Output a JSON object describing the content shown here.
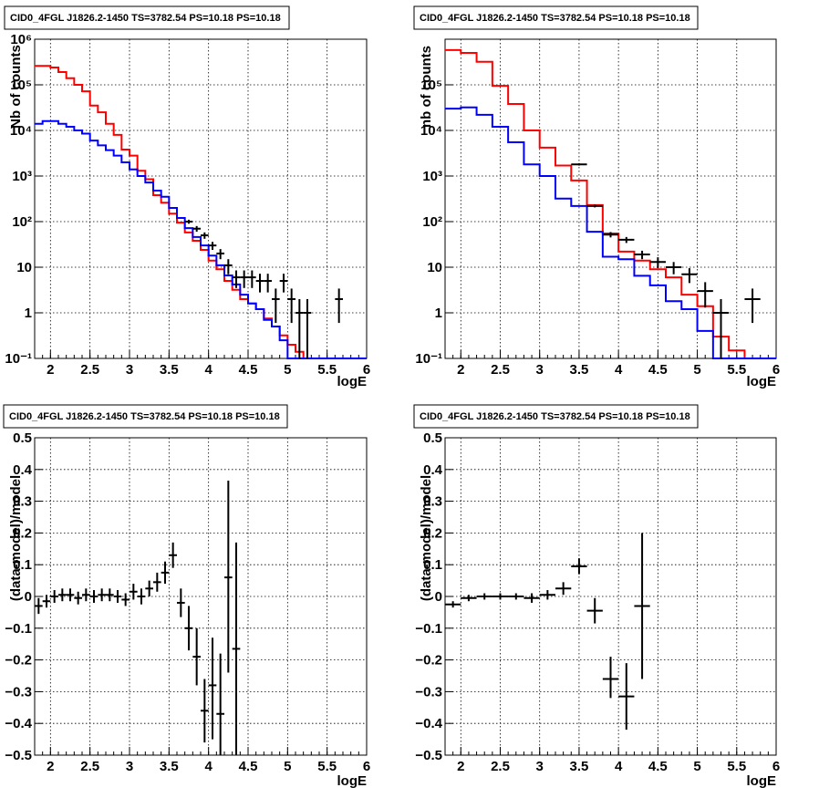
{
  "colors": {
    "model_total": "#ff0000",
    "model_component": "#0000ff",
    "data": "#000000"
  },
  "chart_data": [
    {
      "id": "spectrum-left",
      "type": "step",
      "title": "CID0_4FGL J1826.2-1450 TS=3782.54 PS=10.18 PS=10.18",
      "xlabel": "logE",
      "ylabel": "Nb of counts",
      "log_y": true,
      "xlim": [
        1.8,
        6.0
      ],
      "ylim": [
        0.1,
        1000000
      ],
      "x_ticks": [
        2,
        2.5,
        3,
        3.5,
        4,
        4.5,
        5,
        5.5,
        6
      ],
      "x_tick_labels": [
        "2",
        "2.5",
        "3",
        "3.5",
        "4",
        "4.5",
        "5",
        "5.5",
        "6"
      ],
      "y_ticks": [
        0.1,
        1,
        10,
        100,
        1000,
        10000,
        100000,
        1000000
      ],
      "y_tick_labels": [
        "10⁻¹",
        "1",
        "10",
        "10²",
        "10³",
        "10⁴",
        "10⁵",
        "10⁶"
      ],
      "grid": true,
      "bin_edges": [
        1.8,
        1.9,
        2.0,
        2.1,
        2.2,
        2.3,
        2.4,
        2.5,
        2.6,
        2.7,
        2.8,
        2.9,
        3.0,
        3.1,
        3.2,
        3.3,
        3.4,
        3.5,
        3.6,
        3.7,
        3.8,
        3.9,
        4.0,
        4.1,
        4.2,
        4.3,
        4.4,
        4.5,
        4.6,
        4.7,
        4.8,
        4.9,
        5.0,
        5.1,
        5.2,
        5.3,
        5.4,
        5.5,
        5.6,
        5.7,
        5.8,
        5.9,
        6.0
      ],
      "series": [
        {
          "color_key": "model_total",
          "values": [
            260000,
            260000,
            240000,
            190000,
            140000,
            100000,
            72000,
            35000,
            25000,
            14000,
            8000,
            3800,
            2800,
            1300,
            850,
            380,
            260,
            150,
            95,
            58,
            38,
            24,
            14,
            9,
            5,
            3.2,
            2,
            1.6,
            1.2,
            0.75,
            0.5,
            0.32,
            0.2,
            0.14,
            0.1,
            0.1,
            0.1,
            0.1,
            0.1,
            0.1,
            0.1,
            0.1
          ]
        },
        {
          "color_key": "model_component",
          "values": [
            14000,
            16000,
            16000,
            14000,
            12000,
            10000,
            8500,
            6000,
            4700,
            3700,
            2800,
            2000,
            1400,
            1000,
            720,
            480,
            350,
            200,
            120,
            72,
            46,
            30,
            18,
            11,
            6.6,
            4.2,
            2.5,
            1.6,
            1.2,
            0.7,
            0.5,
            0.25,
            0.1,
            0.1,
            0.1,
            0.1,
            0.1,
            0.1,
            0.1,
            0.1,
            0.1,
            0.1
          ]
        }
      ],
      "points": [
        {
          "x": 3.75,
          "y": 100,
          "ylo": 90,
          "yhi": 110,
          "xhw": 0.05
        },
        {
          "x": 3.85,
          "y": 70,
          "ylo": 60,
          "yhi": 80,
          "xhw": 0.05
        },
        {
          "x": 3.95,
          "y": 50,
          "ylo": 42,
          "yhi": 58,
          "xhw": 0.05
        },
        {
          "x": 4.05,
          "y": 30,
          "ylo": 24,
          "yhi": 36,
          "xhw": 0.05
        },
        {
          "x": 4.15,
          "y": 20,
          "ylo": 15,
          "yhi": 25,
          "xhw": 0.05
        },
        {
          "x": 4.25,
          "y": 11,
          "ylo": 7,
          "yhi": 15,
          "xhw": 0.05
        },
        {
          "x": 4.35,
          "y": 6,
          "ylo": 3.5,
          "yhi": 8.5,
          "xhw": 0.05
        },
        {
          "x": 4.45,
          "y": 6,
          "ylo": 3.5,
          "yhi": 8.5,
          "xhw": 0.05
        },
        {
          "x": 4.55,
          "y": 6,
          "ylo": 3.5,
          "yhi": 8.5,
          "xhw": 0.05
        },
        {
          "x": 4.65,
          "y": 5,
          "ylo": 2.8,
          "yhi": 7.2,
          "xhw": 0.05
        },
        {
          "x": 4.75,
          "y": 5,
          "ylo": 2.8,
          "yhi": 7.2,
          "xhw": 0.05
        },
        {
          "x": 4.85,
          "y": 2,
          "ylo": 0.6,
          "yhi": 3.4,
          "xhw": 0.05
        },
        {
          "x": 4.95,
          "y": 5,
          "ylo": 2.8,
          "yhi": 7.2,
          "xhw": 0.05
        },
        {
          "x": 5.05,
          "y": 2,
          "ylo": 0.6,
          "yhi": 3.4,
          "xhw": 0.05
        },
        {
          "x": 5.15,
          "y": 1,
          "ylo": 0.1,
          "yhi": 2,
          "xhw": 0.05
        },
        {
          "x": 5.25,
          "y": 1,
          "ylo": 0.1,
          "yhi": 2,
          "xhw": 0.05
        },
        {
          "x": 5.65,
          "y": 2,
          "ylo": 0.6,
          "yhi": 3.4,
          "xhw": 0.05
        }
      ]
    },
    {
      "id": "spectrum-right",
      "type": "step",
      "title": "CID0_4FGL J1826.2-1450 TS=3782.54 PS=10.18 PS=10.18",
      "xlabel": "logE",
      "ylabel": "nb of counts",
      "log_y": true,
      "xlim": [
        1.8,
        6.0
      ],
      "ylim": [
        0.1,
        1000000
      ],
      "x_ticks": [
        2,
        2.5,
        3,
        3.5,
        4,
        4.5,
        5,
        5.5,
        6
      ],
      "x_tick_labels": [
        "2",
        "2.5",
        "3",
        "3.5",
        "4",
        "4.5",
        "5",
        "5.5",
        "6"
      ],
      "y_ticks": [
        0.1,
        1,
        10,
        100,
        1000,
        10000,
        100000
      ],
      "y_tick_labels": [
        "10⁻¹",
        "1",
        "10",
        "10²",
        "10³",
        "10⁴",
        "10⁵"
      ],
      "grid": true,
      "bin_edges": [
        1.8,
        2.0,
        2.2,
        2.4,
        2.6,
        2.8,
        3.0,
        3.2,
        3.4,
        3.6,
        3.8,
        4.0,
        4.2,
        4.4,
        4.6,
        4.8,
        5.0,
        5.2,
        5.4,
        5.6,
        5.8,
        6.0
      ],
      "series": [
        {
          "color_key": "model_total",
          "values": [
            580000,
            500000,
            320000,
            95000,
            38000,
            10000,
            4200,
            1700,
            800,
            230,
            55,
            22,
            14,
            9,
            6,
            2.5,
            1.4,
            0.3,
            0.15,
            0.1,
            0.1
          ]
        },
        {
          "color_key": "model_component",
          "values": [
            30000,
            32000,
            22000,
            12000,
            5500,
            1800,
            1000,
            320,
            220,
            60,
            17,
            15,
            6.5,
            4,
            1.8,
            1.2,
            0.4,
            0.1,
            0.1,
            0.1,
            0.1
          ]
        }
      ],
      "points": [
        {
          "x": 3.5,
          "y": 1800,
          "ylo": 1700,
          "yhi": 1900,
          "xhw": 0.1
        },
        {
          "x": 3.7,
          "y": 220,
          "ylo": 205,
          "yhi": 235,
          "xhw": 0.1
        },
        {
          "x": 3.9,
          "y": 52,
          "ylo": 45,
          "yhi": 59,
          "xhw": 0.1
        },
        {
          "x": 4.1,
          "y": 40,
          "ylo": 34,
          "yhi": 46,
          "xhw": 0.1
        },
        {
          "x": 4.3,
          "y": 19,
          "ylo": 15,
          "yhi": 23,
          "xhw": 0.1
        },
        {
          "x": 4.5,
          "y": 13,
          "ylo": 9.5,
          "yhi": 16.5,
          "xhw": 0.1
        },
        {
          "x": 4.7,
          "y": 10,
          "ylo": 7,
          "yhi": 13,
          "xhw": 0.1
        },
        {
          "x": 4.9,
          "y": 7,
          "ylo": 4.5,
          "yhi": 9.5,
          "xhw": 0.1
        },
        {
          "x": 5.1,
          "y": 3,
          "ylo": 1.3,
          "yhi": 4.7,
          "xhw": 0.1
        },
        {
          "x": 5.3,
          "y": 1,
          "ylo": 0.1,
          "yhi": 2,
          "xhw": 0.1
        },
        {
          "x": 5.7,
          "y": 2,
          "ylo": 0.6,
          "yhi": 3.4,
          "xhw": 0.1
        }
      ]
    },
    {
      "id": "residual-left",
      "type": "scatter",
      "title": "CID0_4FGL J1826.2-1450 TS=3782.54 PS=10.18 PS=10.18",
      "xlabel": "logE",
      "ylabel": "(data-model)/model",
      "log_y": false,
      "xlim": [
        1.8,
        6.0
      ],
      "ylim": [
        -0.5,
        0.5
      ],
      "x_ticks": [
        2,
        2.5,
        3,
        3.5,
        4,
        4.5,
        5,
        5.5,
        6
      ],
      "x_tick_labels": [
        "2",
        "2.5",
        "3",
        "3.5",
        "4",
        "4.5",
        "5",
        "5.5",
        "6"
      ],
      "y_ticks": [
        -0.5,
        -0.4,
        -0.3,
        -0.2,
        -0.1,
        0,
        0.1,
        0.2,
        0.3,
        0.4,
        0.5
      ],
      "y_tick_labels": [
        "−0.5",
        "−0.4",
        "−0.3",
        "−0.2",
        "−0.1",
        "0",
        "0.1",
        "0.2",
        "0.3",
        "0.4",
        "0.5"
      ],
      "grid": true,
      "series": [],
      "points": [
        {
          "x": 1.85,
          "y": -0.03,
          "ylo": -0.055,
          "yhi": -0.005,
          "xhw": 0.05
        },
        {
          "x": 1.95,
          "y": -0.015,
          "ylo": -0.035,
          "yhi": 0.005,
          "xhw": 0.05
        },
        {
          "x": 2.05,
          "y": 0.0,
          "ylo": -0.02,
          "yhi": 0.02,
          "xhw": 0.05
        },
        {
          "x": 2.15,
          "y": 0.005,
          "ylo": -0.015,
          "yhi": 0.025,
          "xhw": 0.05
        },
        {
          "x": 2.25,
          "y": 0.005,
          "ylo": -0.015,
          "yhi": 0.025,
          "xhw": 0.05
        },
        {
          "x": 2.35,
          "y": -0.005,
          "ylo": -0.025,
          "yhi": 0.015,
          "xhw": 0.05
        },
        {
          "x": 2.45,
          "y": 0.005,
          "ylo": -0.015,
          "yhi": 0.025,
          "xhw": 0.05
        },
        {
          "x": 2.55,
          "y": 0.0,
          "ylo": -0.02,
          "yhi": 0.02,
          "xhw": 0.05
        },
        {
          "x": 2.65,
          "y": 0.005,
          "ylo": -0.015,
          "yhi": 0.025,
          "xhw": 0.05
        },
        {
          "x": 2.75,
          "y": 0.005,
          "ylo": -0.015,
          "yhi": 0.025,
          "xhw": 0.05
        },
        {
          "x": 2.85,
          "y": 0.0,
          "ylo": -0.02,
          "yhi": 0.02,
          "xhw": 0.05
        },
        {
          "x": 2.95,
          "y": -0.01,
          "ylo": -0.03,
          "yhi": 0.01,
          "xhw": 0.05
        },
        {
          "x": 3.05,
          "y": 0.015,
          "ylo": -0.01,
          "yhi": 0.04,
          "xhw": 0.05
        },
        {
          "x": 3.15,
          "y": 0.0,
          "ylo": -0.025,
          "yhi": 0.025,
          "xhw": 0.05
        },
        {
          "x": 3.25,
          "y": 0.025,
          "ylo": 0.0,
          "yhi": 0.05,
          "xhw": 0.05
        },
        {
          "x": 3.35,
          "y": 0.045,
          "ylo": 0.015,
          "yhi": 0.075,
          "xhw": 0.05
        },
        {
          "x": 3.45,
          "y": 0.075,
          "ylo": 0.04,
          "yhi": 0.11,
          "xhw": 0.05
        },
        {
          "x": 3.55,
          "y": 0.13,
          "ylo": 0.09,
          "yhi": 0.17,
          "xhw": 0.05
        },
        {
          "x": 3.65,
          "y": -0.02,
          "ylo": -0.065,
          "yhi": 0.025,
          "xhw": 0.05
        },
        {
          "x": 3.75,
          "y": -0.1,
          "ylo": -0.17,
          "yhi": -0.03,
          "xhw": 0.05
        },
        {
          "x": 3.85,
          "y": -0.19,
          "ylo": -0.28,
          "yhi": -0.1,
          "xhw": 0.05
        },
        {
          "x": 3.95,
          "y": -0.36,
          "ylo": -0.46,
          "yhi": -0.26,
          "xhw": 0.05
        },
        {
          "x": 4.05,
          "y": -0.28,
          "ylo": -0.45,
          "yhi": -0.13,
          "xhw": 0.05
        },
        {
          "x": 4.15,
          "y": -0.37,
          "ylo": -0.5,
          "yhi": -0.18,
          "xhw": 0.05
        },
        {
          "x": 4.25,
          "y": 0.06,
          "ylo": -0.24,
          "yhi": 0.365,
          "xhw": 0.05
        },
        {
          "x": 4.35,
          "y": -0.165,
          "ylo": -0.5,
          "yhi": 0.17,
          "xhw": 0.05
        }
      ]
    },
    {
      "id": "residual-right",
      "type": "scatter",
      "title": "CID0_4FGL J1826.2-1450 TS=3782.54 PS=10.18 PS=10.18",
      "xlabel": "logE",
      "ylabel": "(data-model)/model",
      "log_y": false,
      "xlim": [
        1.8,
        6.0
      ],
      "ylim": [
        -0.5,
        0.5
      ],
      "x_ticks": [
        2,
        2.5,
        3,
        3.5,
        4,
        4.5,
        5,
        5.5,
        6
      ],
      "x_tick_labels": [
        "2",
        "2.5",
        "3",
        "3.5",
        "4",
        "4.5",
        "5",
        "5.5",
        "6"
      ],
      "y_ticks": [
        -0.5,
        -0.4,
        -0.3,
        -0.2,
        -0.1,
        0,
        0.1,
        0.2,
        0.3,
        0.4,
        0.5
      ],
      "y_tick_labels": [
        "−0.5",
        "−0.4",
        "−0.3",
        "−0.2",
        "−0.1",
        "0",
        "0.1",
        "0.2",
        "0.3",
        "0.4",
        "0.5"
      ],
      "grid": true,
      "series": [],
      "points": [
        {
          "x": 1.9,
          "y": -0.025,
          "ylo": -0.035,
          "yhi": -0.015,
          "xhw": 0.1
        },
        {
          "x": 2.1,
          "y": -0.005,
          "ylo": -0.015,
          "yhi": 0.005,
          "xhw": 0.1
        },
        {
          "x": 2.3,
          "y": 0.0,
          "ylo": -0.01,
          "yhi": 0.01,
          "xhw": 0.1
        },
        {
          "x": 2.5,
          "y": 0.0,
          "ylo": -0.01,
          "yhi": 0.01,
          "xhw": 0.1
        },
        {
          "x": 2.7,
          "y": 0.0,
          "ylo": -0.01,
          "yhi": 0.01,
          "xhw": 0.1
        },
        {
          "x": 2.9,
          "y": -0.005,
          "ylo": -0.02,
          "yhi": 0.01,
          "xhw": 0.1
        },
        {
          "x": 3.1,
          "y": 0.005,
          "ylo": -0.01,
          "yhi": 0.02,
          "xhw": 0.1
        },
        {
          "x": 3.3,
          "y": 0.025,
          "ylo": 0.005,
          "yhi": 0.045,
          "xhw": 0.1
        },
        {
          "x": 3.5,
          "y": 0.095,
          "ylo": 0.07,
          "yhi": 0.12,
          "xhw": 0.1
        },
        {
          "x": 3.7,
          "y": -0.045,
          "ylo": -0.085,
          "yhi": -0.005,
          "xhw": 0.1
        },
        {
          "x": 3.9,
          "y": -0.26,
          "ylo": -0.32,
          "yhi": -0.19,
          "xhw": 0.1
        },
        {
          "x": 4.1,
          "y": -0.315,
          "ylo": -0.42,
          "yhi": -0.21,
          "xhw": 0.1
        },
        {
          "x": 4.3,
          "y": -0.03,
          "ylo": -0.26,
          "yhi": 0.2,
          "xhw": 0.1
        }
      ]
    }
  ]
}
